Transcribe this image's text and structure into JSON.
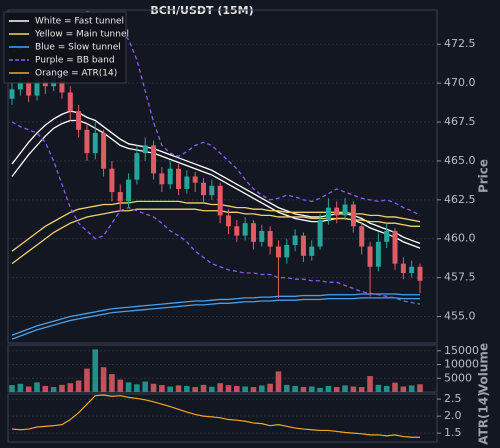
{
  "chart_data": [
    {
      "type": "candlestick",
      "title": "BCH/USDT (15M)",
      "ylabel": "Price",
      "ylim": [
        453.3,
        474.7
      ],
      "yticks": [
        {
          "value": 455,
          "label": "455.0"
        },
        457.5,
        {
          "value": 460,
          "label": "460.0"
        },
        462.5,
        {
          "value": 465,
          "label": "465.0"
        },
        467.5,
        {
          "value": 470,
          "label": "470.0"
        },
        472.5
      ],
      "grid": true,
      "up_color": "#26a69a",
      "down_color": "#e05c64",
      "open": [
        469.0,
        469.6,
        470.0,
        469.2,
        470.3,
        469.8,
        470.5,
        469.4,
        468.2,
        467.0,
        465.5,
        466.8,
        464.5,
        463.0,
        462.4,
        463.8,
        465.5,
        466.0,
        464.2,
        463.5,
        464.5,
        463.2,
        464.0,
        463.6,
        462.8,
        463.4,
        461.5,
        460.8,
        460.2,
        461.0,
        459.8,
        460.5,
        459.5,
        458.8,
        459.6,
        460.2,
        458.9,
        459.5,
        461.2,
        462.0,
        461.5,
        462.2,
        460.8,
        459.5,
        458.2,
        459.8,
        460.5,
        458.4,
        457.8,
        458.2
      ],
      "high": [
        470.2,
        470.6,
        470.4,
        471.0,
        470.8,
        471.2,
        470.8,
        469.8,
        468.6,
        467.4,
        467.5,
        467.0,
        465.0,
        463.5,
        464.2,
        466.0,
        466.5,
        466.3,
        464.6,
        465.0,
        464.8,
        464.4,
        464.3,
        463.9,
        463.8,
        463.6,
        461.9,
        461.2,
        461.4,
        461.2,
        460.9,
        460.8,
        459.9,
        460.0,
        460.6,
        460.4,
        459.9,
        461.6,
        462.6,
        462.4,
        462.6,
        462.4,
        461.0,
        459.8,
        460.4,
        461.0,
        460.7,
        458.8,
        458.6,
        458.4
      ],
      "low": [
        468.6,
        469.2,
        468.8,
        468.9,
        469.3,
        469.5,
        469.0,
        467.6,
        466.5,
        465.0,
        465.1,
        464.0,
        462.4,
        461.8,
        462.0,
        463.5,
        465.0,
        463.8,
        463.0,
        463.2,
        462.8,
        462.9,
        463.0,
        462.3,
        462.5,
        461.0,
        460.3,
        459.8,
        459.9,
        459.3,
        459.5,
        459.0,
        456.2,
        458.4,
        459.2,
        458.5,
        458.6,
        459.3,
        460.9,
        461.0,
        461.2,
        460.4,
        459.0,
        456.3,
        457.9,
        459.4,
        458.0,
        457.4,
        457.5,
        456.5
      ],
      "close": [
        469.6,
        470.0,
        469.2,
        470.3,
        469.8,
        470.5,
        469.4,
        468.2,
        467.0,
        465.5,
        466.8,
        464.5,
        463.0,
        462.4,
        463.8,
        465.5,
        466.0,
        464.2,
        463.5,
        464.5,
        463.2,
        464.0,
        463.6,
        462.8,
        463.4,
        461.5,
        460.8,
        460.2,
        461.0,
        459.8,
        460.5,
        459.5,
        458.8,
        459.6,
        460.2,
        458.9,
        459.5,
        461.2,
        462.0,
        461.5,
        462.2,
        460.8,
        459.5,
        458.2,
        459.8,
        460.5,
        458.4,
        457.8,
        458.2,
        457.3
      ],
      "bands": [
        {
          "name": "White = Fast tunnel",
          "color": "#ffffff",
          "dashed": false,
          "upper": [
            464.8,
            465.5,
            466.2,
            466.8,
            467.3,
            467.7,
            468.0,
            468.2,
            468.1,
            467.8,
            467.6,
            467.2,
            466.8,
            466.4,
            466.1,
            466.0,
            465.9,
            465.8,
            465.6,
            465.4,
            465.2,
            465.0,
            464.8,
            464.6,
            464.4,
            464.1,
            463.8,
            463.5,
            463.2,
            462.9,
            462.6,
            462.3,
            462.0,
            461.8,
            461.6,
            461.5,
            461.4,
            461.4,
            461.5,
            461.6,
            461.6,
            461.5,
            461.3,
            461.0,
            460.8,
            460.6,
            460.4,
            460.1,
            459.9,
            459.7
          ],
          "lower": [
            464.0,
            464.7,
            465.4,
            466.0,
            466.6,
            467.1,
            467.4,
            467.6,
            467.6,
            467.4,
            467.1,
            466.8,
            466.4,
            466.0,
            465.8,
            465.7,
            465.6,
            465.5,
            465.3,
            465.1,
            464.9,
            464.7,
            464.5,
            464.3,
            464.1,
            463.8,
            463.5,
            463.2,
            462.9,
            462.6,
            462.3,
            462.0,
            461.7,
            461.5,
            461.3,
            461.2,
            461.1,
            461.1,
            461.2,
            461.3,
            461.3,
            461.2,
            461.0,
            460.7,
            460.5,
            460.3,
            460.1,
            459.8,
            459.6,
            459.4
          ]
        },
        {
          "name": "Yellow = Main tunnel",
          "color": "#f2d16b",
          "dashed": false,
          "upper": [
            459.2,
            459.6,
            460.0,
            460.4,
            460.8,
            461.1,
            461.4,
            461.7,
            461.9,
            462.0,
            462.1,
            462.2,
            462.2,
            462.3,
            462.3,
            462.4,
            462.4,
            462.4,
            462.4,
            462.4,
            462.4,
            462.3,
            462.3,
            462.3,
            462.2,
            462.2,
            462.1,
            462.0,
            462.0,
            461.9,
            461.9,
            461.8,
            461.8,
            461.7,
            461.7,
            461.7,
            461.7,
            461.7,
            461.7,
            461.7,
            461.7,
            461.6,
            461.6,
            461.5,
            461.5,
            461.4,
            461.4,
            461.3,
            461.2,
            461.1
          ],
          "lower": [
            458.4,
            458.8,
            459.2,
            459.6,
            460.0,
            460.4,
            460.7,
            461.0,
            461.2,
            461.4,
            461.5,
            461.6,
            461.7,
            461.8,
            461.8,
            461.9,
            461.9,
            461.9,
            461.9,
            461.9,
            461.9,
            461.9,
            461.9,
            461.8,
            461.8,
            461.8,
            461.7,
            461.7,
            461.6,
            461.6,
            461.5,
            461.5,
            461.4,
            461.4,
            461.4,
            461.4,
            461.3,
            461.3,
            461.3,
            461.3,
            461.3,
            461.2,
            461.2,
            461.1,
            461.1,
            461.0,
            461.0,
            460.9,
            460.8,
            460.8
          ]
        },
        {
          "name": "Blue = Slow tunnel",
          "color": "#4a9fe8",
          "dashed": false,
          "upper": [
            453.8,
            454.0,
            454.2,
            454.4,
            454.55,
            454.7,
            454.85,
            455.0,
            455.1,
            455.2,
            455.3,
            455.4,
            455.5,
            455.55,
            455.6,
            455.65,
            455.7,
            455.75,
            455.8,
            455.85,
            455.9,
            455.95,
            456.0,
            456.0,
            456.05,
            456.1,
            456.1,
            456.15,
            456.2,
            456.2,
            456.25,
            456.25,
            456.3,
            456.3,
            456.3,
            456.35,
            456.35,
            456.35,
            456.4,
            456.4,
            456.4,
            456.4,
            456.45,
            456.45,
            456.45,
            456.45,
            456.45,
            456.4,
            456.4,
            456.4
          ],
          "lower": [
            453.55,
            453.75,
            453.95,
            454.15,
            454.3,
            454.45,
            454.6,
            454.75,
            454.85,
            454.95,
            455.05,
            455.15,
            455.25,
            455.3,
            455.35,
            455.4,
            455.45,
            455.5,
            455.55,
            455.6,
            455.65,
            455.7,
            455.75,
            455.75,
            455.8,
            455.85,
            455.85,
            455.9,
            455.95,
            455.95,
            456.0,
            456.0,
            456.05,
            456.05,
            456.05,
            456.1,
            456.1,
            456.1,
            456.15,
            456.15,
            456.15,
            456.15,
            456.2,
            456.2,
            456.2,
            456.2,
            456.2,
            456.15,
            456.15,
            456.15
          ]
        },
        {
          "name": "Purple = BB band",
          "color": "#8b5cf0",
          "dashed": true,
          "upper": [
            472.0,
            472.2,
            472.5,
            472.8,
            473.2,
            473.5,
            473.8,
            474.0,
            474.3,
            474.6,
            474.5,
            474.2,
            473.8,
            473.4,
            472.8,
            471.5,
            469.5,
            467.5,
            466.0,
            465.5,
            465.3,
            465.6,
            466.0,
            466.2,
            466.0,
            465.5,
            465.0,
            464.5,
            463.8,
            463.2,
            462.8,
            462.5,
            462.6,
            462.8,
            462.7,
            462.5,
            462.4,
            462.6,
            462.9,
            463.2,
            463.0,
            462.8,
            462.6,
            462.5,
            462.4,
            462.5,
            462.3,
            462.0,
            461.8,
            461.5
          ],
          "lower": [
            467.5,
            467.2,
            467.0,
            466.8,
            466.2,
            465.0,
            463.5,
            462.0,
            461.0,
            460.5,
            460.0,
            460.2,
            461.0,
            461.8,
            462.0,
            461.8,
            461.6,
            461.4,
            461.0,
            460.5,
            460.2,
            459.8,
            459.2,
            458.8,
            458.4,
            458.2,
            458.0,
            457.9,
            457.8,
            457.8,
            457.7,
            457.7,
            457.5,
            457.5,
            457.4,
            457.4,
            457.3,
            457.3,
            457.2,
            457.2,
            457.0,
            456.8,
            456.6,
            456.5,
            456.4,
            456.3,
            456.2,
            456.0,
            455.9,
            455.8
          ]
        }
      ]
    },
    {
      "type": "bar",
      "ylabel": "Volume",
      "ylim": [
        0,
        17100
      ],
      "yticks": [
        5000,
        10000,
        15000
      ],
      "grid": true,
      "values": [
        2500,
        3000,
        2000,
        3500,
        2200,
        1800,
        2600,
        3200,
        4200,
        8500,
        15500,
        9000,
        6500,
        4500,
        3500,
        2800,
        3800,
        3000,
        2500,
        2000,
        2400,
        2200,
        1800,
        2600,
        1900,
        3200,
        2500,
        2200,
        2000,
        1800,
        2400,
        3000,
        7500,
        2600,
        2200,
        1800,
        2000,
        1500,
        2200,
        1800,
        2400,
        2000,
        1800,
        5800,
        2600,
        2200,
        3400,
        2000,
        2400,
        2800
      ]
    },
    {
      "type": "line",
      "name": "Orange = ATR(14)",
      "ylabel": "ATR(14)",
      "color": "#f5a623",
      "ylim": [
        1.24,
        2.65
      ],
      "yticks": [
        1.5,
        {
          "value": 2,
          "label": "2.0"
        },
        2.5
      ],
      "grid": true,
      "values": [
        1.62,
        1.6,
        1.62,
        1.68,
        1.7,
        1.72,
        1.75,
        1.9,
        2.1,
        2.35,
        2.6,
        2.62,
        2.58,
        2.6,
        2.55,
        2.52,
        2.48,
        2.42,
        2.35,
        2.28,
        2.2,
        2.12,
        2.05,
        2.0,
        1.98,
        1.95,
        1.9,
        1.88,
        1.85,
        1.8,
        1.78,
        1.72,
        1.75,
        1.7,
        1.65,
        1.62,
        1.6,
        1.58,
        1.58,
        1.55,
        1.52,
        1.5,
        1.48,
        1.45,
        1.45,
        1.42,
        1.45,
        1.4,
        1.38,
        1.38
      ]
    }
  ]
}
